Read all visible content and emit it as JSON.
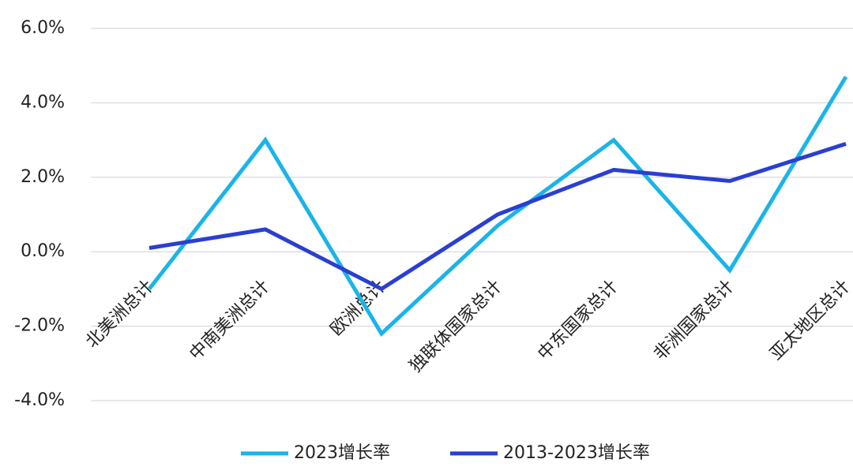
{
  "chart_data": {
    "type": "line",
    "categories": [
      "北美洲总计",
      "中南美洲总计",
      "欧洲总计",
      "独联体国家总计",
      "中东国家总计",
      "非洲国家总计",
      "亚太地区总计"
    ],
    "series": [
      {
        "name": "2023增长率",
        "color": "#1ab4e8",
        "values": [
          -1.0,
          3.0,
          -2.2,
          0.7,
          3.0,
          -0.5,
          4.7
        ]
      },
      {
        "name": "2013-2023增长率",
        "color": "#2a3fd1",
        "values": [
          0.1,
          0.6,
          -1.0,
          1.0,
          2.2,
          1.9,
          2.9
        ]
      }
    ],
    "ylim": [
      -4,
      6
    ],
    "yticks": [
      {
        "value": -4,
        "label": "-4.0%"
      },
      {
        "value": -2,
        "label": "-2.0%"
      },
      {
        "value": 0,
        "label": "0.0%"
      },
      {
        "value": 2,
        "label": "2.0%"
      },
      {
        "value": 4,
        "label": "4.0%"
      },
      {
        "value": 6,
        "label": "6.0%"
      }
    ],
    "grid": true
  }
}
